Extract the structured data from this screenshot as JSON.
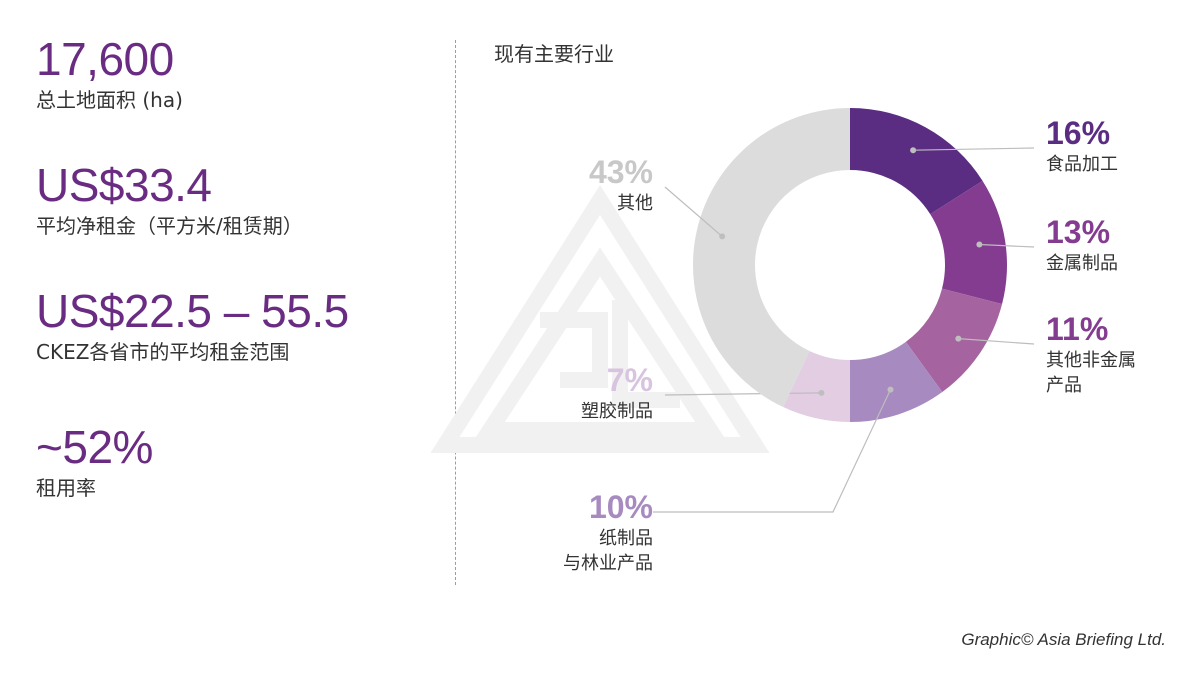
{
  "stats": [
    {
      "value": "17,600",
      "label": "总土地面积 (ha)"
    },
    {
      "value": "US$33.4",
      "label": "平均净租金（平方米/租赁期）"
    },
    {
      "value": "US$22.5 – 55.5",
      "label": "CKEZ各省市的平均租金范围"
    },
    {
      "value": "~52%",
      "label": "租用率"
    }
  ],
  "chart_data": {
    "type": "pie",
    "title": "现有主要行业",
    "slices": [
      {
        "pct_label": "16%",
        "value": 16,
        "name_lines": [
          "食品加工"
        ],
        "color": "#5a2d82"
      },
      {
        "pct_label": "13%",
        "value": 13,
        "name_lines": [
          "金属制品"
        ],
        "color": "#843c90"
      },
      {
        "pct_label": "11%",
        "value": 11,
        "name_lines": [
          "其他非金属",
          "产品"
        ],
        "color": "#a5649f"
      },
      {
        "pct_label": "10%",
        "value": 10,
        "name_lines": [
          "纸制品",
          "与林业产品"
        ],
        "color": "#a78bc0"
      },
      {
        "pct_label": "7%",
        "value": 7,
        "name_lines": [
          "塑胶制品"
        ],
        "color": "#e2cde3"
      },
      {
        "pct_label": "43%",
        "value": 43,
        "name_lines": [
          "其他"
        ],
        "color": "#dcdcdc"
      }
    ],
    "label_colors": [
      "#5a2d82",
      "#843c90",
      "#843c90",
      "#a78bc0",
      "#d8c4df",
      "#c8c8c8"
    ]
  },
  "credit": "Graphic© Asia Briefing Ltd."
}
